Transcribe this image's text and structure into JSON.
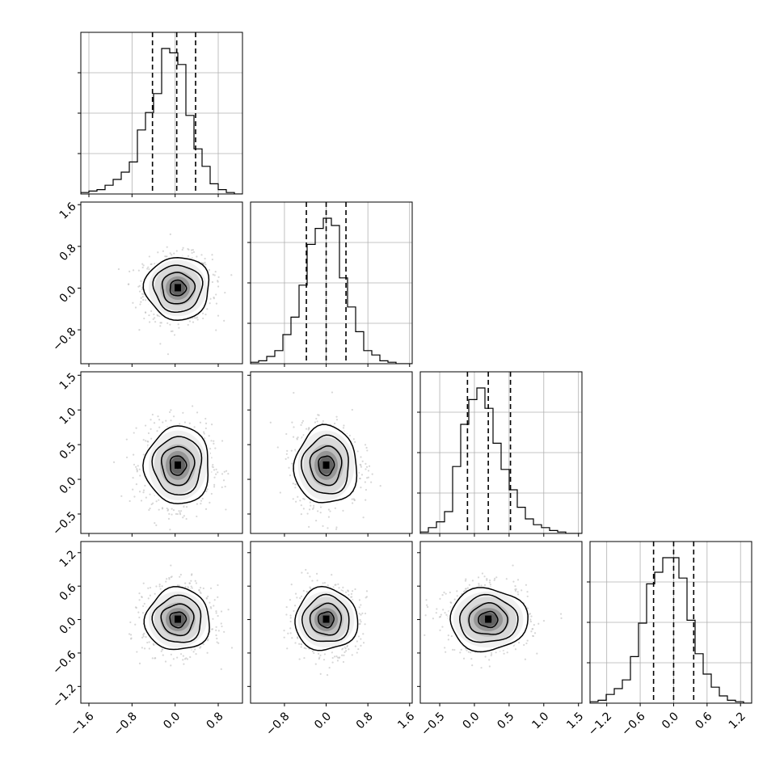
{
  "chart_data": {
    "type": "corner",
    "title": "",
    "parameters": 4,
    "axis_labels": [
      "",
      "",
      "",
      ""
    ],
    "grid": true,
    "colors": {
      "hist": "#000000",
      "contour": "#000000",
      "points": "#bdbdbd",
      "grid": "#b0b0b0"
    },
    "params": [
      {
        "range": [
          -1.75,
          1.25
        ],
        "ticks": [
          -1.6,
          -0.8,
          0.0,
          0.8
        ],
        "tick_labels": [
          "−1.6",
          "−0.8",
          "0.0",
          "0.8"
        ],
        "mean": 0.05,
        "sd": 0.3,
        "quantiles": [
          -0.42,
          0.03,
          0.38
        ]
      },
      {
        "range": [
          -1.45,
          1.65
        ],
        "ticks": [
          -0.8,
          0.0,
          0.8,
          1.6
        ],
        "tick_labels": [
          "−0.8",
          "0.0",
          "0.8",
          "1.6"
        ],
        "mean": 0.0,
        "sd": 0.3,
        "quantiles": [
          -0.38,
          0.0,
          0.38
        ]
      },
      {
        "range": [
          -0.78,
          1.55
        ],
        "ticks": [
          -0.5,
          0.0,
          0.5,
          1.0,
          1.5
        ],
        "tick_labels": [
          "−0.5",
          "0.0",
          "0.5",
          "1.0",
          "1.5"
        ],
        "mean": 0.2,
        "sd": 0.28,
        "quantiles": [
          -0.1,
          0.2,
          0.52
        ]
      },
      {
        "range": [
          -1.5,
          1.4
        ],
        "ticks": [
          -1.2,
          -0.6,
          0.0,
          0.6,
          1.2
        ],
        "tick_labels": [
          "−1.2",
          "−0.6",
          "0.0",
          "0.6",
          "1.2"
        ],
        "mean": 0.0,
        "sd": 0.28,
        "quantiles": [
          -0.36,
          0.0,
          0.36
        ]
      }
    ],
    "histograms": [
      [
        0.01,
        0.02,
        0.03,
        0.06,
        0.1,
        0.15,
        0.22,
        0.44,
        0.56,
        0.69,
        1.0,
        0.97,
        0.89,
        0.54,
        0.31,
        0.19,
        0.07,
        0.03,
        0.01,
        0.0
      ],
      [
        0.01,
        0.02,
        0.05,
        0.09,
        0.2,
        0.32,
        0.54,
        0.82,
        0.93,
        1.0,
        0.95,
        0.59,
        0.39,
        0.22,
        0.09,
        0.06,
        0.02,
        0.01,
        0.0,
        0.0
      ],
      [
        0.01,
        0.04,
        0.08,
        0.15,
        0.46,
        0.75,
        0.92,
        1.0,
        0.86,
        0.62,
        0.44,
        0.3,
        0.18,
        0.1,
        0.06,
        0.04,
        0.02,
        0.01,
        0.0,
        0.0
      ],
      [
        0.01,
        0.02,
        0.06,
        0.1,
        0.16,
        0.32,
        0.55,
        0.82,
        0.9,
        1.0,
        1.0,
        0.86,
        0.57,
        0.34,
        0.2,
        0.11,
        0.05,
        0.02,
        0.01,
        0.0
      ]
    ],
    "contour_levels_sigma": [
      0.5,
      1.0,
      1.5,
      2.0
    ]
  }
}
